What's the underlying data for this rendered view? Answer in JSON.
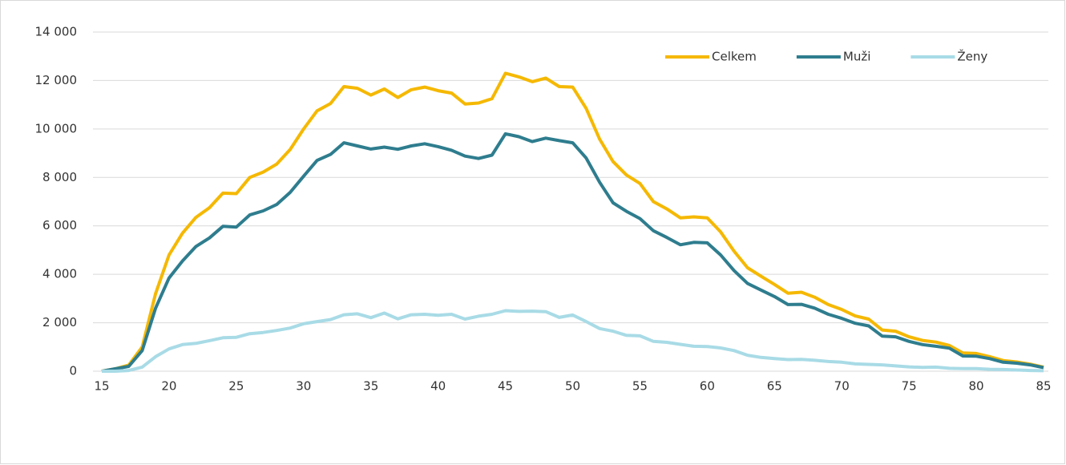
{
  "chart_data": {
    "type": "line",
    "x": [
      15,
      16,
      17,
      18,
      19,
      20,
      21,
      22,
      23,
      24,
      25,
      26,
      27,
      28,
      29,
      30,
      31,
      32,
      33,
      34,
      35,
      36,
      37,
      38,
      39,
      40,
      41,
      42,
      43,
      44,
      45,
      46,
      47,
      48,
      49,
      50,
      51,
      52,
      53,
      54,
      55,
      56,
      57,
      58,
      59,
      60,
      61,
      62,
      63,
      64,
      65,
      66,
      67,
      68,
      69,
      70,
      71,
      72,
      73,
      74,
      75,
      76,
      77,
      78,
      79,
      80,
      81,
      82,
      83,
      84,
      85
    ],
    "series": [
      {
        "name": "Celkem",
        "color": "#f5b800",
        "values": [
          0,
          100,
          250,
          1000,
          3200,
          4800,
          5700,
          6350,
          6750,
          7350,
          7330,
          8000,
          8220,
          8550,
          9150,
          10000,
          10750,
          11050,
          11750,
          11680,
          11400,
          11650,
          11300,
          11620,
          11730,
          11580,
          11480,
          11030,
          11070,
          11250,
          12300,
          12150,
          11950,
          12100,
          11750,
          11730,
          10850,
          9580,
          8650,
          8100,
          7750,
          7000,
          6700,
          6330,
          6370,
          6330,
          5750,
          4950,
          4270,
          3920,
          3580,
          3220,
          3260,
          3050,
          2750,
          2550,
          2280,
          2150,
          1700,
          1650,
          1420,
          1270,
          1200,
          1060,
          750,
          730,
          600,
          440,
          380,
          290,
          170
        ]
      },
      {
        "name": "Muži",
        "color": "#2e7d8e",
        "values": [
          0,
          100,
          200,
          850,
          2600,
          3850,
          4550,
          5150,
          5500,
          5980,
          5950,
          6450,
          6620,
          6880,
          7380,
          8050,
          8700,
          8950,
          9430,
          9300,
          9170,
          9250,
          9160,
          9300,
          9390,
          9270,
          9120,
          8880,
          8780,
          8920,
          9800,
          9680,
          9480,
          9620,
          9520,
          9430,
          8800,
          7800,
          6950,
          6600,
          6300,
          5800,
          5520,
          5220,
          5320,
          5300,
          4800,
          4150,
          3620,
          3350,
          3080,
          2750,
          2760,
          2600,
          2350,
          2180,
          1980,
          1870,
          1450,
          1420,
          1230,
          1100,
          1030,
          950,
          630,
          620,
          520,
          370,
          330,
          260,
          150
        ]
      },
      {
        "name": "Ženy",
        "color": "#a8dbe6",
        "values": [
          0,
          0,
          30,
          170,
          600,
          920,
          1100,
          1150,
          1260,
          1380,
          1400,
          1550,
          1600,
          1680,
          1780,
          1960,
          2050,
          2130,
          2330,
          2370,
          2210,
          2400,
          2160,
          2330,
          2350,
          2310,
          2350,
          2150,
          2270,
          2350,
          2500,
          2470,
          2480,
          2460,
          2220,
          2320,
          2050,
          1760,
          1650,
          1480,
          1460,
          1230,
          1190,
          1110,
          1030,
          1020,
          960,
          850,
          660,
          570,
          520,
          480,
          490,
          450,
          400,
          370,
          300,
          280,
          260,
          220,
          180,
          160,
          170,
          120,
          110,
          110,
          80,
          70,
          50,
          30,
          20
        ]
      }
    ],
    "xlim": [
      15,
      85
    ],
    "xticks": [
      15,
      20,
      25,
      30,
      35,
      40,
      45,
      50,
      55,
      60,
      65,
      70,
      75,
      80,
      85
    ],
    "ylim": [
      0,
      14000
    ],
    "yticks": [
      0,
      {
        "value": 2000,
        "label": "2 000"
      },
      {
        "value": 4000,
        "label": "4 000"
      },
      {
        "value": 6000,
        "label": "6 000"
      },
      {
        "value": 8000,
        "label": "8 000"
      },
      {
        "value": 10000,
        "label": "10 000"
      },
      {
        "value": 12000,
        "label": "12 000"
      },
      {
        "value": 14000,
        "label": "14 000"
      }
    ],
    "grid": true,
    "legend": "top-right"
  }
}
